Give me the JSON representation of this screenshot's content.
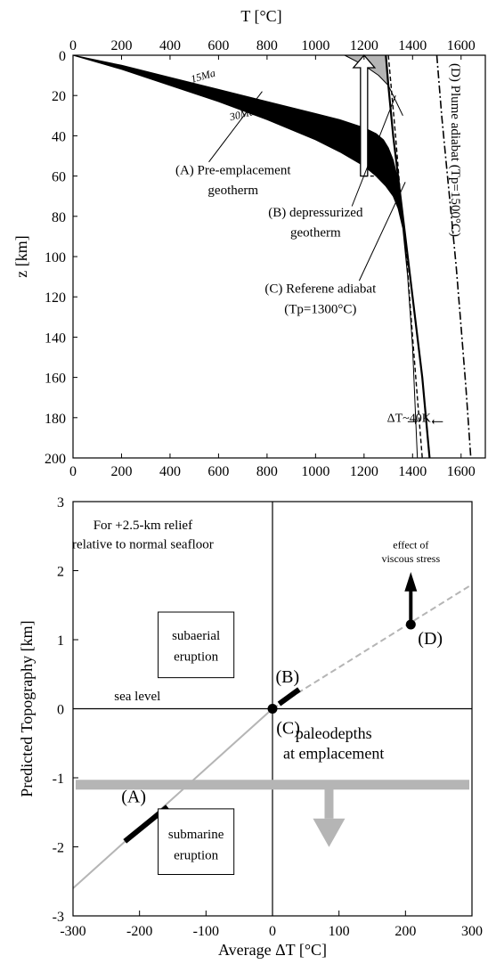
{
  "chart_data": [
    {
      "type": "line",
      "xlabel": "T [°C]",
      "ylabel": "z [km]",
      "xlim": [
        0,
        1700
      ],
      "ylim": [
        200,
        0
      ],
      "x_ticks": [
        "0",
        "200",
        "400",
        "600",
        "800",
        "1000",
        "1200",
        "1400",
        "1600"
      ],
      "y_ticks": [
        "0",
        "20",
        "40",
        "60",
        "80",
        "100",
        "120",
        "140",
        "160",
        "180",
        "200"
      ],
      "grid": false,
      "series": [
        {
          "name": "15Ma",
          "x": [
            0,
            200,
            400,
            600,
            800,
            1000,
            1100,
            1200,
            1250,
            1280,
            1300,
            1320,
            1340,
            1360,
            1380,
            1400,
            1420
          ],
          "y": [
            0,
            5,
            11,
            17,
            23,
            29,
            32,
            36,
            39,
            42,
            46,
            52,
            62,
            80,
            110,
            145,
            200
          ]
        },
        {
          "name": "30Ma",
          "x": [
            0,
            200,
            400,
            600,
            800,
            1000,
            1100,
            1200,
            1250,
            1290,
            1320,
            1340,
            1360,
            1380,
            1400,
            1420
          ],
          "y": [
            0,
            7,
            15,
            23,
            32,
            42,
            48,
            55,
            60,
            65,
            70,
            76,
            86,
            110,
            145,
            200
          ]
        },
        {
          "name": "(B) depressurized geotherm",
          "x": [
            1290,
            1300,
            1320,
            1360,
            1400,
            1440,
            1470
          ],
          "y": [
            0,
            15,
            40,
            80,
            120,
            160,
            200
          ]
        },
        {
          "name": "(C) Referene adiabat",
          "x": [
            1300,
            1330,
            1350,
            1375,
            1400,
            1420,
            1440
          ],
          "y": [
            0,
            40,
            70,
            100,
            140,
            170,
            200
          ]
        },
        {
          "name": "(D) Plume adiabat",
          "x": [
            1500,
            1520,
            1540,
            1560,
            1580,
            1600,
            1620,
            1640
          ],
          "y": [
            0,
            30,
            55,
            80,
            105,
            135,
            165,
            200
          ]
        },
        {
          "name": "gray band",
          "x": [
            1120,
            1200,
            1260,
            1300,
            1320,
            1340,
            1360
          ],
          "y": [
            0,
            5,
            10,
            15,
            20,
            25,
            30
          ]
        }
      ],
      "annotations": [
        {
          "text": "15Ma",
          "x": 540,
          "y": 12
        },
        {
          "text": "30Ma",
          "x": 700,
          "y": 31
        },
        {
          "text": "(A) Pre-emplacement",
          "x": 660,
          "y": 59
        },
        {
          "text": "geotherm",
          "x": 660,
          "y": 69
        },
        {
          "text": "(B) depressurized",
          "x": 1000,
          "y": 80
        },
        {
          "text": "geotherm",
          "x": 1000,
          "y": 90
        },
        {
          "text": "(C) Referene adiabat",
          "x": 1020,
          "y": 118
        },
        {
          "text": "(Tp=1300°C)",
          "x": 1020,
          "y": 128
        },
        {
          "text": "(D) Plume adiabat (Tp=1500°C)",
          "x": 1560,
          "y": 4
        },
        {
          "text": "ΔT~40K",
          "x": 1385,
          "y": 182
        }
      ]
    },
    {
      "type": "line",
      "xlabel": "Average ΔT [°C]",
      "ylabel": "Predicted Topography [km]",
      "xlim": [
        -300,
        300
      ],
      "ylim": [
        -3,
        3
      ],
      "x_ticks": [
        "-300",
        "-200",
        "-100",
        "0",
        "100",
        "200",
        "300"
      ],
      "y_ticks": [
        "3",
        "2",
        "1",
        "0",
        "-1",
        "-2",
        "-3"
      ],
      "grid": false,
      "series": [
        {
          "name": "prediction",
          "x": [
            -300,
            300
          ],
          "y": [
            -2.6,
            1.8
          ]
        },
        {
          "name": "(A)",
          "x": [
            -222,
            -158
          ],
          "y": [
            -1.92,
            -1.42
          ]
        },
        {
          "name": "(B)",
          "x": [
            10,
            40
          ],
          "y": [
            0.07,
            0.28
          ]
        }
      ],
      "points": [
        {
          "label": "(C)",
          "x": 0,
          "y": 0
        },
        {
          "label": "(D)",
          "x": 208,
          "y": 1.22
        }
      ],
      "paleodepth_line": -1.1,
      "annotations": [
        {
          "text": "For +2.5-km relief",
          "x": -195,
          "y": 2.6
        },
        {
          "text": "relative to normal seafloor",
          "x": -195,
          "y": 2.32
        },
        {
          "text": "effect of",
          "x": 208,
          "y": 2.32
        },
        {
          "text": "viscous stress",
          "x": 208,
          "y": 2.12
        },
        {
          "text": "subaerial",
          "x": -115,
          "y": 1.0
        },
        {
          "text": "eruption",
          "x": -115,
          "y": 0.7
        },
        {
          "text": "sea level",
          "x": -238,
          "y": 0.12
        },
        {
          "text": "paleodepths",
          "x": 92,
          "y": -0.43
        },
        {
          "text": "at emplacement",
          "x": 92,
          "y": -0.72
        },
        {
          "text": "submarine",
          "x": -115,
          "y": -1.88
        },
        {
          "text": "eruption",
          "x": -115,
          "y": -2.18
        }
      ],
      "colors": {
        "gray": "#b5b5b5",
        "dark": "#000000"
      }
    }
  ]
}
